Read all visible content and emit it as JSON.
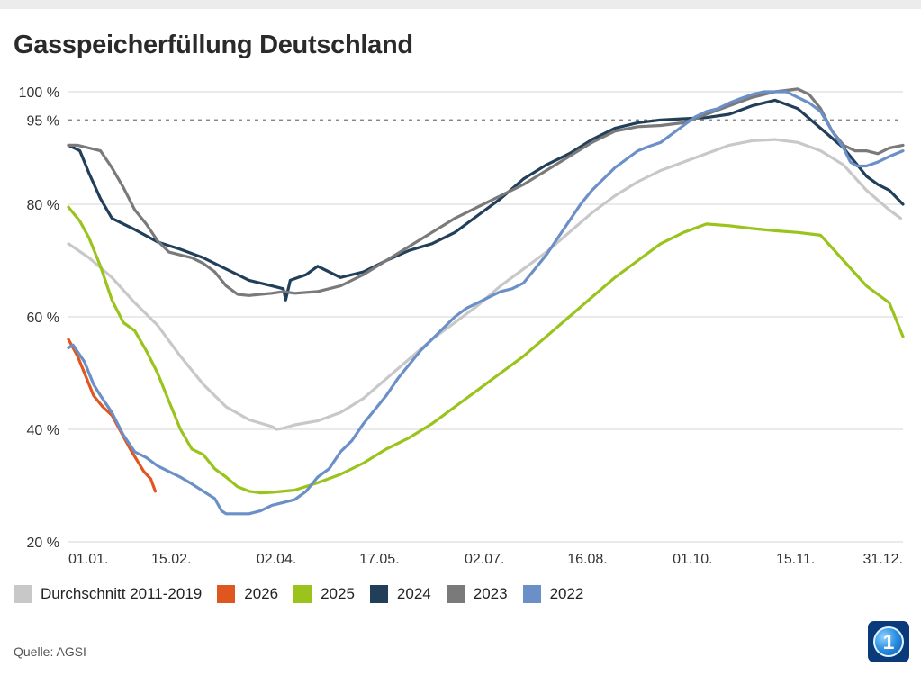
{
  "title": "Gasspeicherfüllung Deutschland",
  "source": "Quelle: AGSI",
  "logo": {
    "text": "1"
  },
  "chart_data": {
    "type": "line",
    "title": "Gasspeicherfüllung Deutschland",
    "xlabel": "",
    "ylabel": "",
    "x_unit": "day of year",
    "xlim": [
      1,
      366
    ],
    "ylim": [
      20,
      100
    ],
    "grid": true,
    "yticks": [
      {
        "value": 100,
        "label": "100 %"
      },
      {
        "value": 95,
        "label": "95 %"
      },
      {
        "value": 80,
        "label": "80 %"
      },
      {
        "value": 60,
        "label": "60 %"
      },
      {
        "value": 40,
        "label": "40 %"
      },
      {
        "value": 20,
        "label": "20 %"
      }
    ],
    "reference_line": {
      "value": 95,
      "style": "dashed"
    },
    "xticks": [
      {
        "value": 1,
        "label": "01.01."
      },
      {
        "value": 46,
        "label": "15.02."
      },
      {
        "value": 92,
        "label": "02.04."
      },
      {
        "value": 137,
        "label": "17.05."
      },
      {
        "value": 183,
        "label": "02.07."
      },
      {
        "value": 228,
        "label": "16.08."
      },
      {
        "value": 274,
        "label": "01.10."
      },
      {
        "value": 319,
        "label": "15.11."
      },
      {
        "value": 365,
        "label": "31.12."
      }
    ],
    "legend_position": "bottom",
    "series": [
      {
        "name": "Durchschnitt 2011-2019",
        "color": "#c8c8c8",
        "points": [
          [
            1,
            73
          ],
          [
            10,
            70.5
          ],
          [
            20,
            67
          ],
          [
            30,
            62.5
          ],
          [
            40,
            58.5
          ],
          [
            50,
            53
          ],
          [
            60,
            48
          ],
          [
            70,
            44
          ],
          [
            80,
            41.7
          ],
          [
            90,
            40.5
          ],
          [
            92,
            40
          ],
          [
            95,
            40.2
          ],
          [
            100,
            40.8
          ],
          [
            110,
            41.5
          ],
          [
            120,
            43
          ],
          [
            130,
            45.5
          ],
          [
            140,
            49
          ],
          [
            150,
            52.5
          ],
          [
            160,
            56
          ],
          [
            170,
            59
          ],
          [
            180,
            62
          ],
          [
            190,
            65.5
          ],
          [
            200,
            68.5
          ],
          [
            210,
            71.5
          ],
          [
            220,
            75
          ],
          [
            230,
            78.5
          ],
          [
            240,
            81.5
          ],
          [
            250,
            84
          ],
          [
            260,
            86
          ],
          [
            270,
            87.5
          ],
          [
            280,
            89
          ],
          [
            290,
            90.5
          ],
          [
            300,
            91.3
          ],
          [
            310,
            91.5
          ],
          [
            320,
            91
          ],
          [
            330,
            89.5
          ],
          [
            340,
            87
          ],
          [
            350,
            82.5
          ],
          [
            360,
            79
          ],
          [
            365,
            77.5
          ]
        ]
      },
      {
        "name": "2026",
        "color": "#e0561f",
        "points": [
          [
            1,
            56
          ],
          [
            5,
            53
          ],
          [
            8,
            50
          ],
          [
            12,
            46
          ],
          [
            16,
            44
          ],
          [
            20,
            42.5
          ],
          [
            24,
            39.5
          ],
          [
            28,
            36.5
          ],
          [
            31,
            34.5
          ],
          [
            34,
            32.5
          ],
          [
            37,
            31.2
          ],
          [
            39,
            29
          ]
        ]
      },
      {
        "name": "2025",
        "color": "#9ac31c",
        "points": [
          [
            1,
            79.5
          ],
          [
            6,
            77
          ],
          [
            10,
            74
          ],
          [
            15,
            69
          ],
          [
            20,
            63
          ],
          [
            25,
            59
          ],
          [
            30,
            57.5
          ],
          [
            35,
            54
          ],
          [
            40,
            50
          ],
          [
            45,
            45
          ],
          [
            50,
            40
          ],
          [
            55,
            36.5
          ],
          [
            60,
            35.5
          ],
          [
            65,
            33
          ],
          [
            70,
            31.5
          ],
          [
            75,
            29.8
          ],
          [
            80,
            29
          ],
          [
            85,
            28.7
          ],
          [
            90,
            28.8
          ],
          [
            100,
            29.2
          ],
          [
            110,
            30.5
          ],
          [
            120,
            32
          ],
          [
            130,
            34
          ],
          [
            140,
            36.5
          ],
          [
            150,
            38.5
          ],
          [
            160,
            41
          ],
          [
            170,
            44
          ],
          [
            180,
            47
          ],
          [
            190,
            50
          ],
          [
            200,
            53
          ],
          [
            210,
            56.5
          ],
          [
            220,
            60
          ],
          [
            230,
            63.5
          ],
          [
            240,
            67
          ],
          [
            250,
            70
          ],
          [
            260,
            73
          ],
          [
            270,
            75
          ],
          [
            280,
            76.5
          ],
          [
            290,
            76.2
          ],
          [
            300,
            75.7
          ],
          [
            310,
            75.3
          ],
          [
            320,
            75
          ],
          [
            330,
            74.5
          ],
          [
            340,
            70
          ],
          [
            350,
            65.5
          ],
          [
            360,
            62.5
          ],
          [
            366,
            56.5
          ]
        ]
      },
      {
        "name": "2024",
        "color": "#223f5a",
        "points": [
          [
            1,
            90.5
          ],
          [
            6,
            89.5
          ],
          [
            10,
            85.5
          ],
          [
            15,
            81
          ],
          [
            20,
            77.5
          ],
          [
            30,
            75.5
          ],
          [
            40,
            73.3
          ],
          [
            50,
            72
          ],
          [
            60,
            70.5
          ],
          [
            70,
            68.5
          ],
          [
            80,
            66.5
          ],
          [
            90,
            65.5
          ],
          [
            95,
            65
          ],
          [
            96,
            63
          ],
          [
            98,
            66.5
          ],
          [
            105,
            67.5
          ],
          [
            110,
            69
          ],
          [
            115,
            68
          ],
          [
            120,
            67
          ],
          [
            130,
            68
          ],
          [
            140,
            70
          ],
          [
            150,
            71.8
          ],
          [
            160,
            73
          ],
          [
            170,
            75
          ],
          [
            180,
            78
          ],
          [
            190,
            81
          ],
          [
            200,
            84.5
          ],
          [
            210,
            87
          ],
          [
            220,
            89
          ],
          [
            230,
            91.5
          ],
          [
            240,
            93.5
          ],
          [
            250,
            94.5
          ],
          [
            260,
            95
          ],
          [
            270,
            95.2
          ],
          [
            280,
            95.4
          ],
          [
            290,
            96
          ],
          [
            300,
            97.5
          ],
          [
            310,
            98.5
          ],
          [
            320,
            97
          ],
          [
            330,
            93.5
          ],
          [
            340,
            90
          ],
          [
            350,
            85
          ],
          [
            355,
            83.5
          ],
          [
            360,
            82.5
          ],
          [
            366,
            80
          ]
        ]
      },
      {
        "name": "2023",
        "color": "#7a7a7a",
        "points": [
          [
            1,
            90.5
          ],
          [
            5,
            90.5
          ],
          [
            10,
            90
          ],
          [
            15,
            89.5
          ],
          [
            20,
            86.5
          ],
          [
            25,
            83
          ],
          [
            30,
            79
          ],
          [
            35,
            76.5
          ],
          [
            40,
            73.5
          ],
          [
            45,
            71.5
          ],
          [
            50,
            71
          ],
          [
            55,
            70.5
          ],
          [
            60,
            69.5
          ],
          [
            65,
            68
          ],
          [
            70,
            65.5
          ],
          [
            75,
            64
          ],
          [
            80,
            63.8
          ],
          [
            85,
            64
          ],
          [
            90,
            64.2
          ],
          [
            95,
            64.5
          ],
          [
            100,
            64.2
          ],
          [
            110,
            64.5
          ],
          [
            120,
            65.5
          ],
          [
            130,
            67.5
          ],
          [
            140,
            70
          ],
          [
            150,
            72.5
          ],
          [
            160,
            75
          ],
          [
            170,
            77.5
          ],
          [
            180,
            79.5
          ],
          [
            190,
            81.5
          ],
          [
            200,
            83.5
          ],
          [
            210,
            86
          ],
          [
            220,
            88.5
          ],
          [
            230,
            91
          ],
          [
            240,
            93
          ],
          [
            250,
            93.8
          ],
          [
            260,
            94
          ],
          [
            270,
            94.5
          ],
          [
            280,
            96
          ],
          [
            290,
            97.5
          ],
          [
            300,
            99
          ],
          [
            310,
            100
          ],
          [
            320,
            100.5
          ],
          [
            325,
            99.5
          ],
          [
            330,
            97
          ],
          [
            335,
            93
          ],
          [
            340,
            90.5
          ],
          [
            345,
            89.5
          ],
          [
            350,
            89.5
          ],
          [
            355,
            89
          ],
          [
            360,
            90
          ],
          [
            366,
            90.5
          ]
        ]
      },
      {
        "name": "2022",
        "color": "#6b8fc7",
        "points": [
          [
            1,
            54.5
          ],
          [
            3,
            55
          ],
          [
            8,
            52
          ],
          [
            12,
            48
          ],
          [
            15,
            46
          ],
          [
            20,
            43
          ],
          [
            25,
            39
          ],
          [
            30,
            36
          ],
          [
            35,
            35
          ],
          [
            40,
            33.5
          ],
          [
            45,
            32.5
          ],
          [
            50,
            31.5
          ],
          [
            55,
            30.3
          ],
          [
            60,
            29
          ],
          [
            65,
            27.7
          ],
          [
            68,
            25.5
          ],
          [
            70,
            25
          ],
          [
            75,
            25
          ],
          [
            80,
            25
          ],
          [
            85,
            25.5
          ],
          [
            90,
            26.5
          ],
          [
            95,
            27
          ],
          [
            100,
            27.5
          ],
          [
            105,
            29
          ],
          [
            110,
            31.5
          ],
          [
            115,
            33
          ],
          [
            120,
            36
          ],
          [
            125,
            38
          ],
          [
            130,
            41
          ],
          [
            135,
            43.5
          ],
          [
            140,
            46
          ],
          [
            145,
            49
          ],
          [
            150,
            51.5
          ],
          [
            155,
            54
          ],
          [
            160,
            56
          ],
          [
            165,
            58
          ],
          [
            170,
            60
          ],
          [
            175,
            61.5
          ],
          [
            180,
            62.5
          ],
          [
            185,
            63.5
          ],
          [
            190,
            64.5
          ],
          [
            195,
            65
          ],
          [
            200,
            66
          ],
          [
            205,
            68.5
          ],
          [
            210,
            71
          ],
          [
            215,
            74
          ],
          [
            220,
            77
          ],
          [
            225,
            80
          ],
          [
            230,
            82.5
          ],
          [
            235,
            84.5
          ],
          [
            240,
            86.5
          ],
          [
            245,
            88
          ],
          [
            250,
            89.5
          ],
          [
            255,
            90.3
          ],
          [
            260,
            91
          ],
          [
            265,
            92.5
          ],
          [
            270,
            94
          ],
          [
            275,
            95.5
          ],
          [
            280,
            96.5
          ],
          [
            285,
            97
          ],
          [
            290,
            98
          ],
          [
            295,
            98.8
          ],
          [
            300,
            99.5
          ],
          [
            305,
            100
          ],
          [
            310,
            100
          ],
          [
            315,
            100
          ],
          [
            320,
            99
          ],
          [
            325,
            98
          ],
          [
            330,
            96.5
          ],
          [
            335,
            93
          ],
          [
            340,
            90
          ],
          [
            343,
            87.5
          ],
          [
            346,
            86.8
          ],
          [
            350,
            86.8
          ],
          [
            355,
            87.5
          ],
          [
            360,
            88.5
          ],
          [
            366,
            89.5
          ]
        ]
      }
    ]
  }
}
